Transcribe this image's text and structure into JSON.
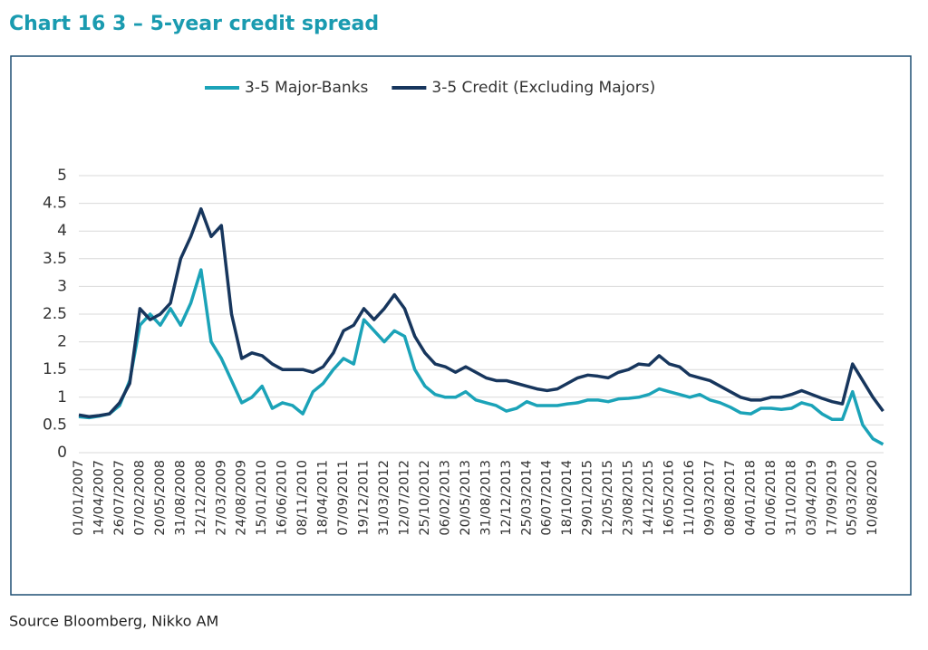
{
  "chart_data": {
    "type": "line",
    "title": "Chart 16 3 – 5-year credit spread",
    "source": "Source Bloomberg, Nikko AM",
    "categories": [
      "01/01/2007",
      null,
      "14/04/2007",
      null,
      "26/07/2007",
      null,
      "07/02/2008",
      null,
      "20/05/2008",
      null,
      "31/08/2008",
      null,
      "12/12/2008",
      null,
      "27/03/2009",
      null,
      "24/08/2009",
      null,
      "15/01/2010",
      null,
      "16/06/2010",
      null,
      "08/11/2010",
      null,
      "18/04/2011",
      null,
      "07/09/2011",
      null,
      "19/12/2011",
      null,
      "31/03/2012",
      null,
      "12/07/2012",
      null,
      "25/10/2012",
      null,
      "06/02/2013",
      null,
      "20/05/2013",
      null,
      "31/08/2013",
      null,
      "12/12/2013",
      null,
      "25/03/2014",
      null,
      "06/07/2014",
      null,
      "18/10/2014",
      null,
      "29/01/2015",
      null,
      "12/05/2015",
      null,
      "23/08/2015",
      null,
      "14/12/2015",
      null,
      "16/05/2016",
      null,
      "11/10/2016",
      null,
      "09/03/2017",
      null,
      "08/08/2017",
      null,
      "04/01/2018",
      null,
      "01/06/2018",
      null,
      "31/10/2018",
      null,
      "03/04/2019",
      null,
      "17/09/2019",
      null,
      "05/03/2020",
      null,
      "10/08/2020",
      null
    ],
    "series": [
      {
        "name": "3-5 Major-Banks",
        "color": "#1ba3b8",
        "values": [
          0.65,
          0.63,
          0.66,
          0.7,
          0.85,
          1.3,
          2.3,
          2.5,
          2.3,
          2.6,
          2.3,
          2.7,
          3.3,
          2.0,
          1.7,
          1.3,
          0.9,
          1.0,
          1.2,
          0.8,
          0.9,
          0.85,
          0.7,
          1.1,
          1.25,
          1.5,
          1.7,
          1.6,
          2.4,
          2.2,
          2.0,
          2.2,
          2.1,
          1.5,
          1.2,
          1.05,
          1.0,
          1.0,
          1.1,
          0.95,
          0.9,
          0.85,
          0.75,
          0.8,
          0.92,
          0.85,
          0.85,
          0.85,
          0.88,
          0.9,
          0.95,
          0.95,
          0.92,
          0.97,
          0.98,
          1.0,
          1.05,
          1.15,
          1.1,
          1.05,
          1.0,
          1.05,
          0.95,
          0.9,
          0.82,
          0.72,
          0.7,
          0.8,
          0.8,
          0.78,
          0.8,
          0.9,
          0.85,
          0.7,
          0.6,
          0.6,
          1.1,
          0.5,
          0.25,
          0.15
        ]
      },
      {
        "name": "3-5 Credit (Excluding Majors)",
        "color": "#17365d",
        "values": [
          0.68,
          0.65,
          0.67,
          0.7,
          0.9,
          1.25,
          2.6,
          2.4,
          2.5,
          2.7,
          3.5,
          3.9,
          4.4,
          3.9,
          4.1,
          2.5,
          1.7,
          1.8,
          1.75,
          1.6,
          1.5,
          1.5,
          1.5,
          1.45,
          1.55,
          1.8,
          2.2,
          2.3,
          2.6,
          2.4,
          2.6,
          2.85,
          2.6,
          2.1,
          1.8,
          1.6,
          1.55,
          1.45,
          1.55,
          1.45,
          1.35,
          1.3,
          1.3,
          1.25,
          1.2,
          1.15,
          1.12,
          1.15,
          1.25,
          1.35,
          1.4,
          1.38,
          1.35,
          1.45,
          1.5,
          1.6,
          1.58,
          1.75,
          1.6,
          1.55,
          1.4,
          1.35,
          1.3,
          1.2,
          1.1,
          1.0,
          0.95,
          0.95,
          1.0,
          1.0,
          1.05,
          1.12,
          1.05,
          0.98,
          0.92,
          0.88,
          1.6,
          1.3,
          1.0,
          0.75
        ]
      }
    ],
    "ylim": [
      0,
      5
    ],
    "yticks": [
      0,
      0.5,
      1,
      1.5,
      2,
      2.5,
      3,
      3.5,
      4,
      4.5,
      5
    ],
    "grid": true,
    "legend": "top"
  }
}
